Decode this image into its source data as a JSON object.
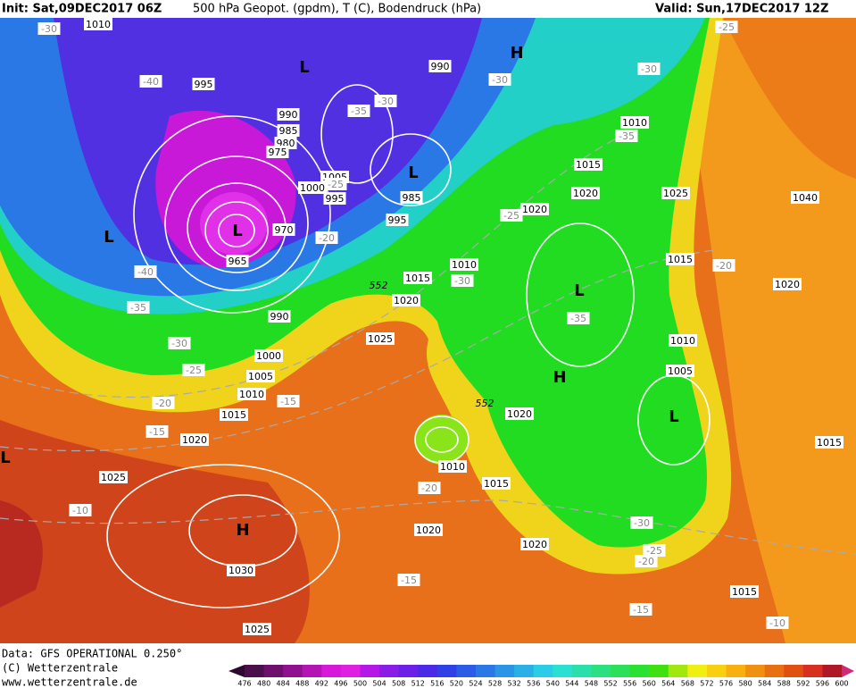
{
  "header": {
    "init": "Init: Sat,09DEC2017 06Z",
    "title": "500 hPa Geopot. (gpdm), T (C), Bodendruck (hPa)",
    "valid": "Valid: Sun,17DEC2017 12Z"
  },
  "map": {
    "pressure_labels": [
      "1010",
      "995",
      "990",
      "985",
      "980",
      "975",
      "970",
      "965",
      "1005",
      "1000",
      "995",
      "990",
      "985",
      "995",
      "1010",
      "1015",
      "1020",
      "990",
      "1025",
      "1000",
      "1005",
      "1010",
      "1015",
      "1020",
      "1025",
      "1030",
      "1025",
      "1010",
      "1015",
      "1020",
      "1020",
      "1020",
      "1020",
      "1015",
      "1010",
      "1020",
      "1025",
      "1040",
      "1015",
      "1020",
      "1010",
      "1005",
      "1015",
      "1015"
    ],
    "temperature_labels": [
      "-30",
      "-40",
      "-35",
      "-30",
      "-25",
      "-20",
      "-25",
      "-30",
      "-40",
      "-35",
      "-30",
      "-25",
      "-20",
      "-15",
      "-15",
      "-10",
      "-20",
      "-15",
      "-15",
      "-10",
      "-20",
      "-25",
      "-30",
      "-35",
      "-35",
      "-30",
      "-30",
      "-25",
      "-20"
    ],
    "centers": [
      "H",
      "L",
      "L",
      "L",
      "L",
      "L",
      "H",
      "L",
      "H",
      "L"
    ],
    "contour_labels": [
      "552",
      "552"
    ]
  },
  "colorbar": {
    "labels": [
      476,
      480,
      484,
      488,
      492,
      496,
      500,
      504,
      508,
      512,
      516,
      520,
      524,
      528,
      532,
      536,
      540,
      544,
      548,
      552,
      556,
      560,
      564,
      568,
      572,
      576,
      580,
      584,
      588,
      592,
      596,
      600
    ],
    "colors": [
      "#2d0a2d",
      "#4b0f4b",
      "#6e0f6e",
      "#8f118f",
      "#b514b5",
      "#d818d8",
      "#e020e0",
      "#b318e6",
      "#8a1ce6",
      "#6a20e6",
      "#4a2ae6",
      "#3040e6",
      "#2a5ce6",
      "#2a78e6",
      "#2a94e6",
      "#2ab0e6",
      "#2acce6",
      "#2ae0d0",
      "#2ae0a8",
      "#2ae080",
      "#2ae058",
      "#2ae030",
      "#40e010",
      "#a0e810",
      "#f0f010",
      "#f8d010",
      "#f8b010",
      "#f09010",
      "#e87010",
      "#e05010",
      "#d83020",
      "#b01828",
      "#d0287a"
    ]
  },
  "footer": {
    "data": "Data: GFS OPERATIONAL 0.250°",
    "copyright": "(C) Wetterzentrale",
    "url": "www.wetterzentrale.de"
  }
}
